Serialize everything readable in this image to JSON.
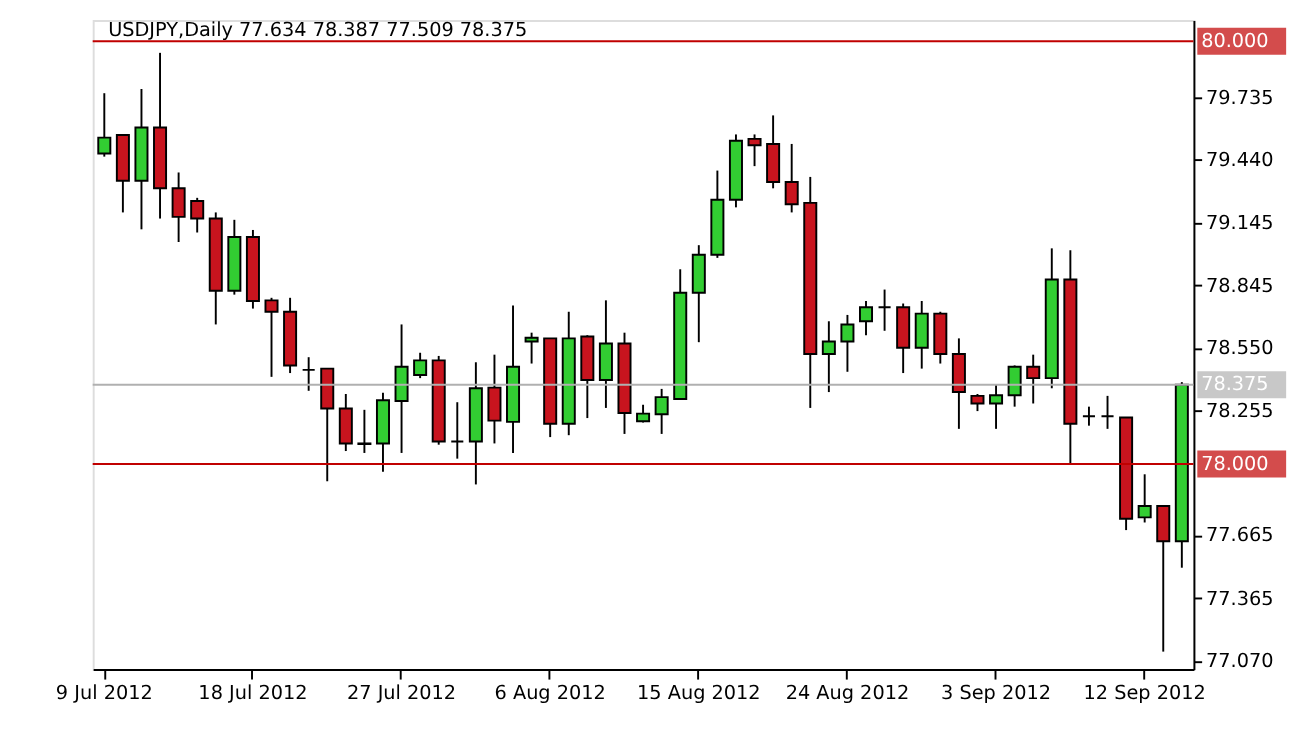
{
  "chart_data": {
    "type": "candlestick",
    "title": "USDJPY,Daily  77.634 78.387 77.509 78.375",
    "categories": [
      "9 Jul 2012",
      null,
      null,
      null,
      null,
      null,
      null,
      null,
      "18 Jul 2012",
      null,
      null,
      null,
      null,
      null,
      null,
      null,
      "27 Jul 2012",
      null,
      null,
      null,
      null,
      null,
      null,
      null,
      "6 Aug 2012",
      null,
      null,
      null,
      null,
      null,
      null,
      null,
      "15 Aug 2012",
      null,
      null,
      null,
      null,
      null,
      null,
      null,
      "24 Aug 2012",
      null,
      null,
      null,
      null,
      null,
      null,
      null,
      "3 Sep 2012",
      null,
      null,
      null,
      null,
      null,
      null,
      null,
      "12 Sep 2012",
      null,
      null
    ],
    "ohlc": [
      [
        79.469,
        79.754,
        79.454,
        79.544
      ],
      [
        79.556,
        79.556,
        79.19,
        79.34
      ],
      [
        79.34,
        79.774,
        79.11,
        79.592
      ],
      [
        79.592,
        79.945,
        79.161,
        79.304
      ],
      [
        79.304,
        79.379,
        79.05,
        79.169
      ],
      [
        79.244,
        79.259,
        79.095,
        79.161
      ],
      [
        79.161,
        79.19,
        78.66,
        78.819
      ],
      [
        78.819,
        79.155,
        78.801,
        79.074
      ],
      [
        79.074,
        79.107,
        78.735,
        78.771
      ],
      [
        78.774,
        78.786,
        78.412,
        78.72
      ],
      [
        78.72,
        78.786,
        78.43,
        78.466
      ],
      [
        78.445,
        78.505,
        78.346,
        78.445
      ],
      [
        78.451,
        78.451,
        77.918,
        78.262
      ],
      [
        78.262,
        78.331,
        78.061,
        78.097
      ],
      [
        78.097,
        78.256,
        78.052,
        78.094
      ],
      [
        78.097,
        78.337,
        77.963,
        78.301
      ],
      [
        78.298,
        78.66,
        78.052,
        78.46
      ],
      [
        78.421,
        78.526,
        78.406,
        78.49
      ],
      [
        78.49,
        78.511,
        78.091,
        78.106
      ],
      [
        78.106,
        78.292,
        78.025,
        78.106
      ],
      [
        78.106,
        78.481,
        77.903,
        78.358
      ],
      [
        78.361,
        78.517,
        78.097,
        78.205
      ],
      [
        78.199,
        78.75,
        78.052,
        78.46
      ],
      [
        78.579,
        78.621,
        78.475,
        78.597
      ],
      [
        78.594,
        78.594,
        78.127,
        78.19
      ],
      [
        78.19,
        78.72,
        78.136,
        78.594
      ],
      [
        78.603,
        78.609,
        78.217,
        78.397
      ],
      [
        78.397,
        78.774,
        78.265,
        78.57
      ],
      [
        78.57,
        78.621,
        78.142,
        78.241
      ],
      [
        78.202,
        78.28,
        78.196,
        78.238
      ],
      [
        78.235,
        78.355,
        78.142,
        78.316
      ],
      [
        78.307,
        78.921,
        78.307,
        78.81
      ],
      [
        78.81,
        79.035,
        78.576,
        78.99
      ],
      [
        78.99,
        79.388,
        78.975,
        79.25
      ],
      [
        79.25,
        79.559,
        79.214,
        79.529
      ],
      [
        79.538,
        79.559,
        79.409,
        79.508
      ],
      [
        79.514,
        79.649,
        79.304,
        79.334
      ],
      [
        79.334,
        79.514,
        79.19,
        79.229
      ],
      [
        79.235,
        79.358,
        78.265,
        78.52
      ],
      [
        78.52,
        78.675,
        78.34,
        78.579
      ],
      [
        78.579,
        78.705,
        78.436,
        78.66
      ],
      [
        78.675,
        78.771,
        78.609,
        78.741
      ],
      [
        78.741,
        78.825,
        78.63,
        78.741
      ],
      [
        78.741,
        78.759,
        78.43,
        78.55
      ],
      [
        78.55,
        78.771,
        78.451,
        78.711
      ],
      [
        78.711,
        78.72,
        78.475,
        78.52
      ],
      [
        78.52,
        78.594,
        78.166,
        78.34
      ],
      [
        78.322,
        78.331,
        78.25,
        78.286
      ],
      [
        78.286,
        78.376,
        78.166,
        78.325
      ],
      [
        78.325,
        78.466,
        78.271,
        78.46
      ],
      [
        78.46,
        78.517,
        78.286,
        78.406
      ],
      [
        78.406,
        79.02,
        78.358,
        78.873
      ],
      [
        78.873,
        79.011,
        77.998,
        78.19
      ],
      [
        78.226,
        78.271,
        78.181,
        78.226
      ],
      [
        78.226,
        78.322,
        78.166,
        78.226
      ],
      [
        78.22,
        78.22,
        77.687,
        77.741
      ],
      [
        77.747,
        77.951,
        77.723,
        77.801
      ],
      [
        77.801,
        77.801,
        77.112,
        77.634
      ],
      [
        77.634,
        78.387,
        77.509,
        78.375
      ]
    ],
    "colors": [
      "#32cd32",
      "#c8141e",
      "#32cd32",
      "#c8141e",
      "#c8141e",
      "#c8141e",
      "#c8141e",
      "#32cd32",
      "#c8141e",
      "#c8141e",
      "#c8141e",
      "#000000",
      "#c8141e",
      "#c8141e",
      "#000000",
      "#32cd32",
      "#32cd32",
      "#32cd32",
      "#c8141e",
      "#000000",
      "#32cd32",
      "#c8141e",
      "#32cd32",
      "#32cd32",
      "#c8141e",
      "#32cd32",
      "#c8141e",
      "#32cd32",
      "#c8141e",
      "#32cd32",
      "#32cd32",
      "#32cd32",
      "#32cd32",
      "#32cd32",
      "#32cd32",
      "#c8141e",
      "#c8141e",
      "#c8141e",
      "#c8141e",
      "#32cd32",
      "#32cd32",
      "#32cd32",
      "#000000",
      "#c8141e",
      "#32cd32",
      "#c8141e",
      "#c8141e",
      "#c8141e",
      "#32cd32",
      "#32cd32",
      "#c8141e",
      "#32cd32",
      "#c8141e",
      "#000000",
      "#000000",
      "#c8141e",
      "#32cd32",
      "#c8141e",
      "#32cd32"
    ],
    "ylim": [
      77.03,
      80.1
    ],
    "yticks": [
      {
        "value": 77.07,
        "label": "77.070"
      },
      {
        "value": 77.365,
        "label": "77.365"
      },
      {
        "value": 77.665,
        "label": "77.665"
      },
      {
        "value": 78.255,
        "label": "78.255"
      },
      {
        "value": 78.55,
        "label": "78.550"
      },
      {
        "value": 78.845,
        "label": "78.845"
      },
      {
        "value": 79.145,
        "label": "79.145"
      },
      {
        "value": 79.44,
        "label": "79.440"
      },
      {
        "value": 79.735,
        "label": "79.735"
      }
    ],
    "ref_lines": [
      {
        "axis": "y",
        "value": 80.0,
        "label": "80.000",
        "color": "#c00000"
      },
      {
        "axis": "y",
        "value": 78.0,
        "label": "78.000",
        "color": "#c00000"
      },
      {
        "axis": "y",
        "value": 78.375,
        "label": "78.375",
        "color": "#b0b0b0"
      }
    ],
    "grid": false
  }
}
